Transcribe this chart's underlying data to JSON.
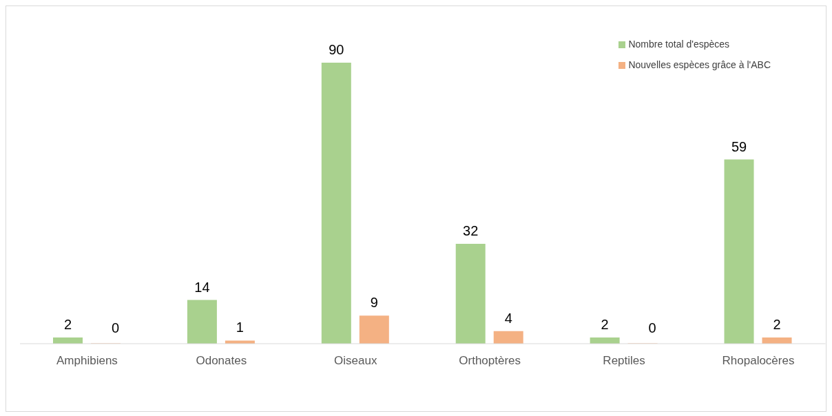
{
  "chart_data": {
    "type": "bar",
    "categories": [
      "Amphibiens",
      "Odonates",
      "Oiseaux",
      "Orthoptères",
      "Reptiles",
      "Rhopalocères"
    ],
    "series": [
      {
        "name": "Nombre total d'espèces",
        "color": "#a9d18e",
        "values": [
          2,
          14,
          90,
          32,
          2,
          59
        ]
      },
      {
        "name": "Nouvelles espèces grâce à l'ABC",
        "color": "#f4b183",
        "values": [
          0,
          1,
          9,
          4,
          0,
          2
        ]
      }
    ],
    "data_labels": true,
    "legend": "top right",
    "grid": false
  }
}
